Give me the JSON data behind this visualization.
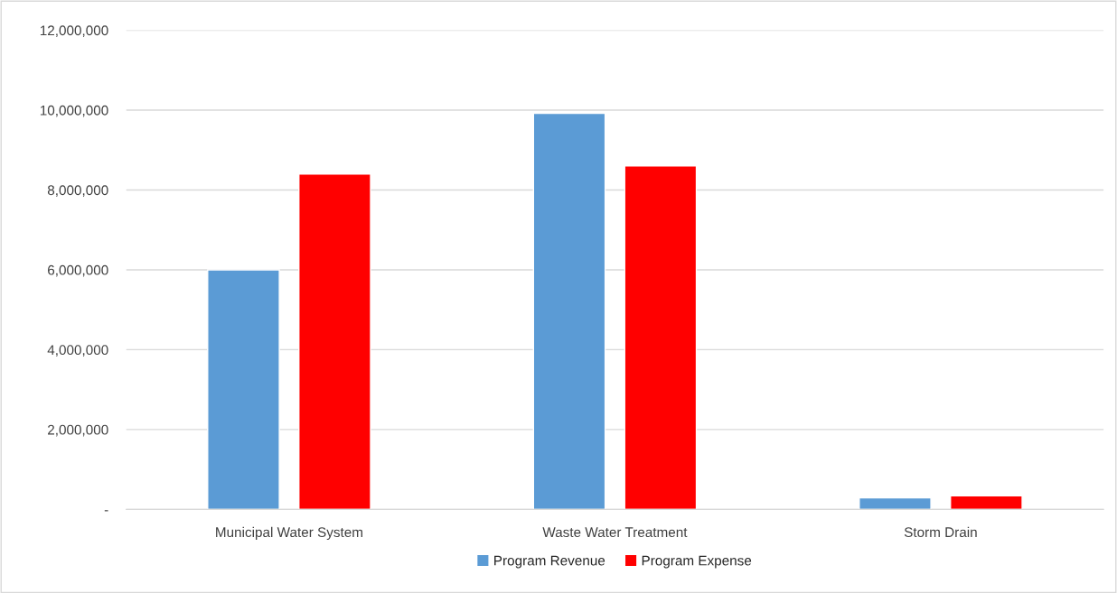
{
  "chart_data": {
    "type": "bar",
    "categories": [
      "Municipal Water System",
      "Waste Water Treatment",
      "Storm Drain"
    ],
    "series": [
      {
        "name": "Program Revenue",
        "color": "#5b9bd5",
        "values": [
          6000000,
          9920000,
          290000
        ]
      },
      {
        "name": "Program Expense",
        "color": "#ff0000",
        "values": [
          8400000,
          8600000,
          340000
        ]
      }
    ],
    "ylim": [
      0,
      12000000
    ],
    "yticks": [
      {
        "value": 0,
        "label": "-"
      },
      {
        "value": 2000000,
        "label": "2,000,000"
      },
      {
        "value": 4000000,
        "label": "4,000,000"
      },
      {
        "value": 6000000,
        "label": "6,000,000"
      },
      {
        "value": 8000000,
        "label": "8,000,000"
      },
      {
        "value": 10000000,
        "label": "10,000,000"
      },
      {
        "value": 12000000,
        "label": "12,000,000"
      }
    ],
    "grid": "y",
    "legend": "bottom"
  }
}
